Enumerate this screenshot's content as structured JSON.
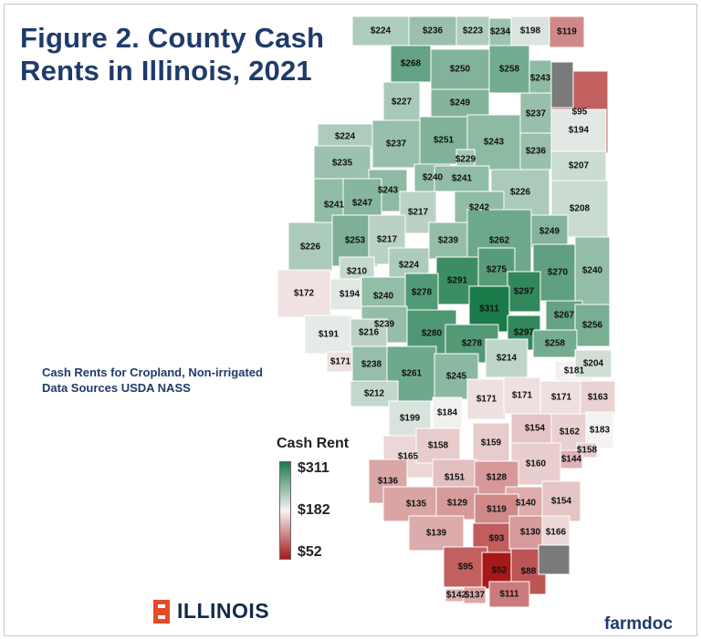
{
  "title": "Figure 2.  County Cash\nRents in Illinois, 2021",
  "subtitle_line1": "Cash Rents for Cropland, Non-irrigated",
  "subtitle_line2": "Data Sources USDA NASS",
  "legend": {
    "title": "Cash Rent",
    "max": "$311",
    "mid": "$182",
    "min": "$52",
    "color_max": "#1a7a4a",
    "color_mid": "#f6f3f3",
    "color_min": "#a81818"
  },
  "logo_text": "ILLINOIS",
  "brand": "farmdoc",
  "map_data": {
    "no_data_color": "#7a7a7a",
    "counties": [
      {
        "label": "$224",
        "value": 224
      },
      {
        "label": "$236",
        "value": 236
      },
      {
        "label": "$223",
        "value": 223
      },
      {
        "label": "$234",
        "value": 234
      },
      {
        "label": "$198",
        "value": 198
      },
      {
        "label": "$119",
        "value": 119
      },
      {
        "label": "$268",
        "value": 268
      },
      {
        "label": "$250",
        "value": 250
      },
      {
        "label": "$258",
        "value": 258
      },
      {
        "label": "$243",
        "value": 243
      },
      {
        "label": "$227",
        "value": 227
      },
      {
        "label": "$249",
        "value": 249
      },
      {
        "label": "$237",
        "value": 237
      },
      {
        "label": "$95",
        "value": 95
      },
      {
        "label": "$194",
        "value": 194
      },
      {
        "label": "$224",
        "value": 224
      },
      {
        "label": "$237",
        "value": 237
      },
      {
        "label": "$251",
        "value": 251
      },
      {
        "label": "$243",
        "value": 243
      },
      {
        "label": "$236",
        "value": 236
      },
      {
        "label": "$235",
        "value": 235
      },
      {
        "label": "$229",
        "value": 229
      },
      {
        "label": "$207",
        "value": 207
      },
      {
        "label": "$240",
        "value": 240
      },
      {
        "label": "$241",
        "value": 241
      },
      {
        "label": "$243",
        "value": 243
      },
      {
        "label": "$226",
        "value": 226
      },
      {
        "label": "$241",
        "value": 241
      },
      {
        "label": "$247",
        "value": 247
      },
      {
        "label": "$217",
        "value": 217
      },
      {
        "label": "$242",
        "value": 242
      },
      {
        "label": "$208",
        "value": 208
      },
      {
        "label": "$226",
        "value": 226
      },
      {
        "label": "$253",
        "value": 253
      },
      {
        "label": "$217",
        "value": 217
      },
      {
        "label": "$239",
        "value": 239
      },
      {
        "label": "$262",
        "value": 262
      },
      {
        "label": "$249",
        "value": 249
      },
      {
        "label": "$224",
        "value": 224
      },
      {
        "label": "$210",
        "value": 210
      },
      {
        "label": "$291",
        "value": 291
      },
      {
        "label": "$275",
        "value": 275
      },
      {
        "label": "$270",
        "value": 270
      },
      {
        "label": "$240",
        "value": 240
      },
      {
        "label": "$172",
        "value": 172
      },
      {
        "label": "$194",
        "value": 194
      },
      {
        "label": "$240",
        "value": 240
      },
      {
        "label": "$278",
        "value": 278
      },
      {
        "label": "$297",
        "value": 297
      },
      {
        "label": "$311",
        "value": 311
      },
      {
        "label": "$280",
        "value": 280
      },
      {
        "label": "$239",
        "value": 239
      },
      {
        "label": "$267",
        "value": 267
      },
      {
        "label": "$256",
        "value": 256
      },
      {
        "label": "$191",
        "value": 191
      },
      {
        "label": "$216",
        "value": 216
      },
      {
        "label": "$297",
        "value": 297
      },
      {
        "label": "$278",
        "value": 278
      },
      {
        "label": "$258",
        "value": 258
      },
      {
        "label": "$214",
        "value": 214
      },
      {
        "label": "$171",
        "value": 171
      },
      {
        "label": "$238",
        "value": 238
      },
      {
        "label": "$261",
        "value": 261
      },
      {
        "label": "$245",
        "value": 245
      },
      {
        "label": "$181",
        "value": 181
      },
      {
        "label": "$204",
        "value": 204
      },
      {
        "label": "$212",
        "value": 212
      },
      {
        "label": "$171",
        "value": 171
      },
      {
        "label": "$171",
        "value": 171
      },
      {
        "label": "$171",
        "value": 171
      },
      {
        "label": "$163",
        "value": 163
      },
      {
        "label": "$199",
        "value": 199
      },
      {
        "label": "$184",
        "value": 184
      },
      {
        "label": "$154",
        "value": 154
      },
      {
        "label": "$162",
        "value": 162
      },
      {
        "label": "$183",
        "value": 183
      },
      {
        "label": "$165",
        "value": 165
      },
      {
        "label": "$158",
        "value": 158
      },
      {
        "label": "$159",
        "value": 159
      },
      {
        "label": "$158",
        "value": 158
      },
      {
        "label": "$160",
        "value": 160
      },
      {
        "label": "$144",
        "value": 144
      },
      {
        "label": "$136",
        "value": 136
      },
      {
        "label": "$151",
        "value": 151
      },
      {
        "label": "$128",
        "value": 128
      },
      {
        "label": "$135",
        "value": 135
      },
      {
        "label": "$129",
        "value": 129
      },
      {
        "label": "$140",
        "value": 140
      },
      {
        "label": "$154",
        "value": 154
      },
      {
        "label": "$119",
        "value": 119
      },
      {
        "label": "$139",
        "value": 139
      },
      {
        "label": "$93",
        "value": 93
      },
      {
        "label": "$130",
        "value": 130
      },
      {
        "label": "$166",
        "value": 166
      },
      {
        "label": "$95",
        "value": 95
      },
      {
        "label": "$52",
        "value": 52
      },
      {
        "label": "$88",
        "value": 88
      },
      {
        "label": "$142",
        "value": 142
      },
      {
        "label": "$137",
        "value": 137
      },
      {
        "label": "$111",
        "value": 111
      },
      {
        "label": "",
        "value": null
      },
      {
        "label": "",
        "value": null
      }
    ]
  }
}
